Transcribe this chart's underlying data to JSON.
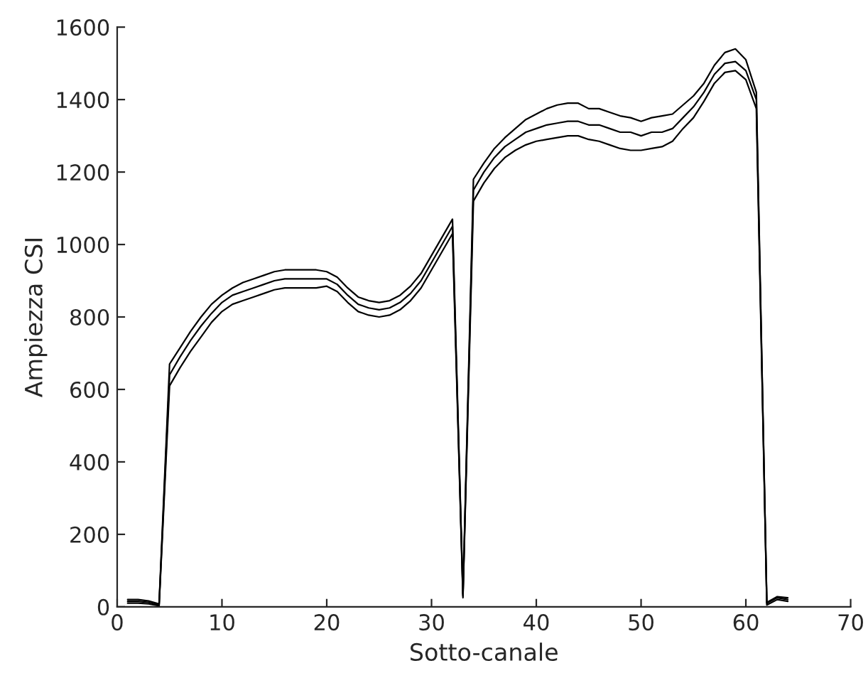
{
  "chart_data": {
    "type": "line",
    "xlabel": "Sotto-canale",
    "ylabel": "Ampiezza CSI",
    "x": [
      1,
      2,
      3,
      4,
      5,
      6,
      7,
      8,
      9,
      10,
      11,
      12,
      13,
      14,
      15,
      16,
      17,
      18,
      19,
      20,
      21,
      22,
      23,
      24,
      25,
      26,
      27,
      28,
      29,
      30,
      31,
      32,
      33,
      34,
      35,
      36,
      37,
      38,
      39,
      40,
      41,
      42,
      43,
      44,
      45,
      46,
      47,
      48,
      49,
      50,
      51,
      52,
      53,
      54,
      55,
      56,
      57,
      58,
      59,
      60,
      61,
      62,
      63,
      64
    ],
    "series": [
      {
        "color": "#000000",
        "values": [
          20,
          20,
          16,
          8,
          670,
          715,
          760,
          800,
          835,
          860,
          880,
          895,
          905,
          915,
          925,
          930,
          930,
          930,
          930,
          925,
          910,
          880,
          855,
          845,
          840,
          845,
          860,
          885,
          920,
          970,
          1020,
          1070,
          35,
          1180,
          1225,
          1265,
          1295,
          1320,
          1345,
          1360,
          1375,
          1385,
          1390,
          1390,
          1375,
          1375,
          1365,
          1355,
          1350,
          1340,
          1350,
          1355,
          1360,
          1385,
          1410,
          1445,
          1495,
          1530,
          1540,
          1510,
          1420,
          12,
          28,
          25
        ]
      },
      {
        "color": "#000000",
        "values": [
          15,
          15,
          12,
          5,
          640,
          690,
          735,
          775,
          810,
          840,
          860,
          870,
          880,
          890,
          900,
          905,
          905,
          905,
          905,
          905,
          890,
          860,
          835,
          825,
          820,
          825,
          840,
          865,
          900,
          950,
          1000,
          1050,
          30,
          1150,
          1200,
          1240,
          1270,
          1290,
          1310,
          1320,
          1330,
          1335,
          1340,
          1340,
          1330,
          1330,
          1320,
          1310,
          1310,
          1300,
          1310,
          1310,
          1320,
          1350,
          1380,
          1420,
          1470,
          1500,
          1505,
          1480,
          1400,
          10,
          25,
          20
        ]
      },
      {
        "color": "#000000",
        "values": [
          10,
          10,
          8,
          3,
          610,
          660,
          705,
          745,
          785,
          815,
          835,
          845,
          855,
          865,
          875,
          880,
          880,
          880,
          880,
          885,
          870,
          840,
          815,
          805,
          800,
          805,
          820,
          845,
          880,
          930,
          980,
          1030,
          25,
          1120,
          1170,
          1210,
          1240,
          1260,
          1275,
          1285,
          1290,
          1295,
          1300,
          1300,
          1290,
          1285,
          1275,
          1265,
          1260,
          1260,
          1265,
          1270,
          1285,
          1320,
          1350,
          1395,
          1445,
          1475,
          1480,
          1455,
          1375,
          5,
          20,
          15
        ]
      }
    ],
    "xlim": [
      0,
      70
    ],
    "xticks": [
      0,
      10,
      20,
      30,
      40,
      50,
      60,
      70
    ],
    "ylim": [
      0,
      1600
    ],
    "yticks": [
      0,
      200,
      400,
      600,
      800,
      1000,
      1200,
      1400,
      1600
    ],
    "grid": false,
    "legend": false,
    "marker": "none",
    "line_style": "solid"
  }
}
